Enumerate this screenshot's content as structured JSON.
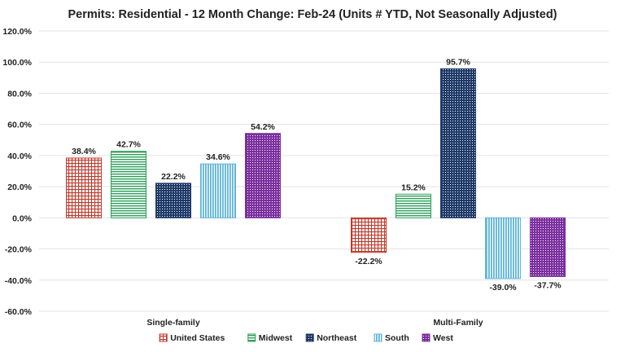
{
  "chart_data": {
    "type": "bar",
    "title": "Permits: Residential - 12 Month Change:  Feb-24 (Units # YTD, Not Seasonally Adjusted)",
    "xlabel": "",
    "ylabel": "",
    "ylim": [
      -60,
      120
    ],
    "yticks": [
      120,
      100,
      80,
      60,
      40,
      20,
      0,
      -20,
      -40,
      -60
    ],
    "ytick_labels": [
      "120.0%",
      "100.0%",
      "80.0%",
      "60.0%",
      "40.0%",
      "20.0%",
      "0.0%",
      "-20.0%",
      "-40.0%",
      "-60.0%"
    ],
    "grid": true,
    "legend_position": "bottom",
    "categories": [
      "Single-family",
      "Multi-Family"
    ],
    "series": [
      {
        "name": "United States",
        "values": [
          38.4,
          -22.2
        ],
        "labels": [
          "38.4%",
          "-22.2%"
        ],
        "color": "#c0392b",
        "pattern": "grid"
      },
      {
        "name": "Midwest",
        "values": [
          42.7,
          15.2
        ],
        "labels": [
          "42.7%",
          "15.2%"
        ],
        "color": "#2e9e5b",
        "pattern": "hlines"
      },
      {
        "name": "Northeast",
        "values": [
          22.2,
          95.7
        ],
        "labels": [
          "22.2%",
          "95.7%"
        ],
        "color": "#1f3a68",
        "pattern": "dots"
      },
      {
        "name": "South",
        "values": [
          34.6,
          -39.0
        ],
        "labels": [
          "34.6%",
          "-39.0%"
        ],
        "color": "#5fb4d9",
        "pattern": "vlines"
      },
      {
        "name": "West",
        "values": [
          54.2,
          -37.7
        ],
        "labels": [
          "54.2%",
          "-37.7%"
        ],
        "color": "#7b2f9e",
        "pattern": "dots"
      }
    ]
  }
}
